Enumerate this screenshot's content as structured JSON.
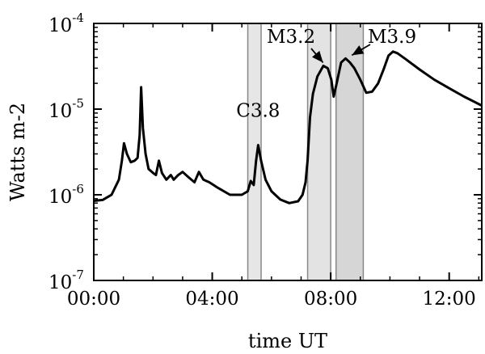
{
  "chart_data": {
    "type": "line",
    "xlabel": "time UT",
    "ylabel": "Watts m-2",
    "xlim": [
      0,
      13.1
    ],
    "ylim": [
      1e-07,
      0.0001
    ],
    "yscale": "log",
    "grid": false,
    "x_ticks": [
      {
        "value": 0,
        "label": "00:00"
      },
      {
        "value": 4,
        "label": "04:00"
      },
      {
        "value": 8,
        "label": "08:00"
      },
      {
        "value": 12,
        "label": "12:00"
      }
    ],
    "y_ticks": [
      {
        "value": 1e-07,
        "base": "10",
        "exp": "-7"
      },
      {
        "value": 1e-06,
        "base": "10",
        "exp": "-6"
      },
      {
        "value": 1e-05,
        "base": "10",
        "exp": "-5"
      },
      {
        "value": 0.0001,
        "base": "10",
        "exp": "-4"
      }
    ],
    "series": [
      {
        "points": [
          [
            0.0,
            8.5e-07
          ],
          [
            0.3,
            8.7e-07
          ],
          [
            0.6,
            1e-06
          ],
          [
            0.85,
            1.5e-06
          ],
          [
            0.95,
            2.5e-06
          ],
          [
            1.02,
            4e-06
          ],
          [
            1.12,
            3e-06
          ],
          [
            1.25,
            2.4e-06
          ],
          [
            1.38,
            2.5e-06
          ],
          [
            1.48,
            2.7e-06
          ],
          [
            1.55,
            5e-06
          ],
          [
            1.6,
            1.8e-05
          ],
          [
            1.66,
            6e-06
          ],
          [
            1.75,
            3e-06
          ],
          [
            1.85,
            2e-06
          ],
          [
            2.0,
            1.8e-06
          ],
          [
            2.1,
            1.7e-06
          ],
          [
            2.2,
            2.5e-06
          ],
          [
            2.3,
            1.8e-06
          ],
          [
            2.45,
            1.5e-06
          ],
          [
            2.6,
            1.7e-06
          ],
          [
            2.7,
            1.5e-06
          ],
          [
            2.85,
            1.7e-06
          ],
          [
            3.0,
            1.85e-06
          ],
          [
            3.2,
            1.6e-06
          ],
          [
            3.4,
            1.4e-06
          ],
          [
            3.55,
            1.85e-06
          ],
          [
            3.7,
            1.5e-06
          ],
          [
            3.9,
            1.4e-06
          ],
          [
            4.2,
            1.2e-06
          ],
          [
            4.6,
            1e-06
          ],
          [
            5.0,
            1e-06
          ],
          [
            5.2,
            1.1e-06
          ],
          [
            5.3,
            1.45e-06
          ],
          [
            5.4,
            1.3e-06
          ],
          [
            5.48,
            2.5e-06
          ],
          [
            5.55,
            3.8e-06
          ],
          [
            5.65,
            2.5e-06
          ],
          [
            5.8,
            1.5e-06
          ],
          [
            6.0,
            1.1e-06
          ],
          [
            6.3,
            8.8e-07
          ],
          [
            6.6,
            8e-07
          ],
          [
            6.9,
            8.4e-07
          ],
          [
            7.05,
            1e-06
          ],
          [
            7.15,
            1.4e-06
          ],
          [
            7.22,
            2.5e-06
          ],
          [
            7.3,
            8e-06
          ],
          [
            7.4,
            1.5e-05
          ],
          [
            7.55,
            2.4e-05
          ],
          [
            7.75,
            3.2e-05
          ],
          [
            7.9,
            3e-05
          ],
          [
            8.02,
            2.2e-05
          ],
          [
            8.1,
            1.4e-05
          ],
          [
            8.2,
            2e-05
          ],
          [
            8.35,
            3.5e-05
          ],
          [
            8.5,
            3.9e-05
          ],
          [
            8.65,
            3.5e-05
          ],
          [
            8.8,
            3e-05
          ],
          [
            9.0,
            2.2e-05
          ],
          [
            9.2,
            1.55e-05
          ],
          [
            9.4,
            1.6e-05
          ],
          [
            9.6,
            2e-05
          ],
          [
            9.8,
            3e-05
          ],
          [
            9.95,
            4.2e-05
          ],
          [
            10.1,
            4.7e-05
          ],
          [
            10.25,
            4.5e-05
          ],
          [
            10.5,
            3.9e-05
          ],
          [
            11.0,
            2.9e-05
          ],
          [
            11.5,
            2.2e-05
          ],
          [
            12.0,
            1.75e-05
          ],
          [
            12.5,
            1.4e-05
          ],
          [
            13.1,
            1.1e-05
          ]
        ]
      }
    ],
    "shaded_regions": [
      {
        "start": 5.2,
        "end": 5.65,
        "shade": "#e6e6e6"
      },
      {
        "start": 7.22,
        "end": 8.0,
        "shade": "#e3e3e3"
      },
      {
        "start": 8.18,
        "end": 9.1,
        "shade": "#d6d6d6"
      }
    ],
    "annotations": [
      {
        "text": "C3.8",
        "x": 5.55,
        "y": 3.8e-06,
        "arrow": false
      },
      {
        "text": "M3.2",
        "x": 7.85,
        "y": 3.2e-05,
        "arrow": true
      },
      {
        "text": "M3.9",
        "x": 8.55,
        "y": 3.9e-05,
        "arrow": true
      }
    ]
  }
}
